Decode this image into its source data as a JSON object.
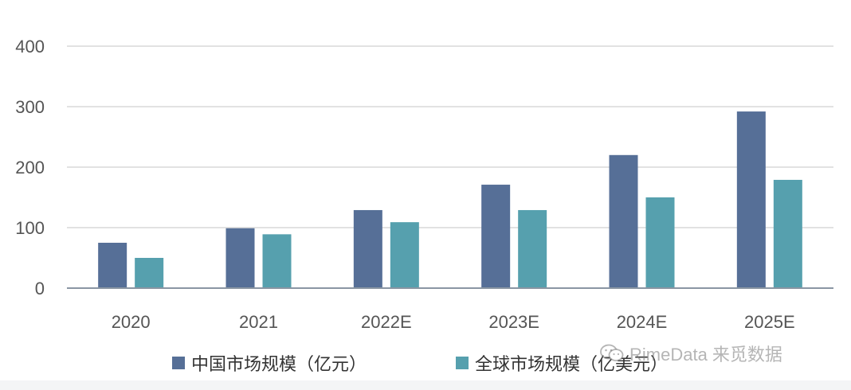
{
  "chart_data": {
    "type": "bar",
    "categories": [
      "2020",
      "2021",
      "2022E",
      "2023E",
      "2024E",
      "2025E"
    ],
    "series": [
      {
        "name": "中国市场规模（亿元）",
        "values": [
          75,
          99,
          129,
          171,
          220,
          292
        ],
        "color": "#566f97"
      },
      {
        "name": "全球市场规模（亿美元）",
        "values": [
          50,
          89,
          109,
          129,
          150,
          179
        ],
        "color": "#56a0ae"
      }
    ],
    "ylim": [
      0,
      400
    ],
    "yticks": [
      0,
      100,
      200,
      300,
      400
    ],
    "grid": true,
    "legend_position": "bottom",
    "title": "",
    "xlabel": "",
    "ylabel": ""
  },
  "watermark": {
    "text": "RimeData 来觅数据",
    "icon": "wechat-icon"
  },
  "colors": {
    "grid": "#d9d9d9",
    "axis": "#8a96a3",
    "tick_text": "#555555"
  }
}
